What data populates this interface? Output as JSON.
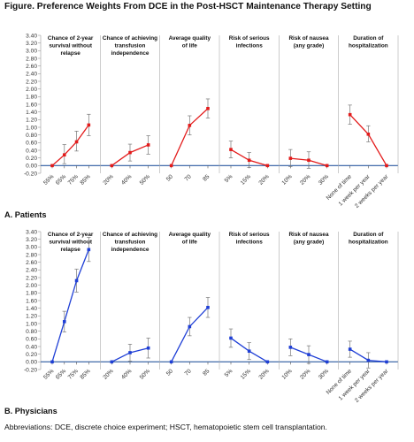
{
  "figure": {
    "title": "Figure. Preference Weights From DCE in the Post-HSCT Maintenance Therapy Setting",
    "footnote": "Abbreviations: DCE, discrete choice experiment; HSCT, hematopoietic stem cell transplantation."
  },
  "chart_data": [
    {
      "type": "line",
      "label": "A. Patients",
      "ylim": [
        -0.2,
        3.4
      ],
      "yticks": [
        "-0.20",
        "0.00",
        "0.20",
        "0.40",
        "0.60",
        "0.80",
        "1.00",
        "1.20",
        "1.40",
        "1.60",
        "1.80",
        "2.00",
        "2.20",
        "2.40",
        "2.60",
        "2.80",
        "3.00",
        "3.20",
        "3.40"
      ],
      "line_color": "#e31b1b",
      "baseline_color": "#2c5aa0",
      "panels": [
        {
          "title": "Chance of 2-year survival without relapse",
          "title_lines": [
            "Chance of 2-year",
            "survival without",
            "relapse"
          ],
          "categories": [
            "55%",
            "65%",
            "75%",
            "85%"
          ],
          "values": [
            0.0,
            0.28,
            0.62,
            1.06
          ],
          "ci_low": [
            0.0,
            0.05,
            0.38,
            0.78
          ],
          "ci_high": [
            0.0,
            0.55,
            0.9,
            1.34
          ]
        },
        {
          "title": "Chance of achieving transfusion independence",
          "title_lines": [
            "Chance of achieving",
            "transfusion",
            "independence"
          ],
          "categories": [
            "20%",
            "40%",
            "50%"
          ],
          "values": [
            0.0,
            0.34,
            0.54
          ],
          "ci_low": [
            0.0,
            0.12,
            0.3
          ],
          "ci_high": [
            0.0,
            0.56,
            0.78
          ]
        },
        {
          "title": "Average quality of life",
          "title_lines": [
            "Average quality",
            "of life"
          ],
          "categories": [
            "50",
            "70",
            "85"
          ],
          "values": [
            0.0,
            1.05,
            1.49
          ],
          "ci_low": [
            0.0,
            0.8,
            1.24
          ],
          "ci_high": [
            0.0,
            1.3,
            1.74
          ]
        },
        {
          "title": "Risk of serious infections",
          "title_lines": [
            "Risk of serious",
            "infections"
          ],
          "categories": [
            "5%",
            "15%",
            "20%"
          ],
          "values": [
            0.42,
            0.14,
            0.0
          ],
          "ci_low": [
            0.2,
            -0.05,
            0.0
          ],
          "ci_high": [
            0.64,
            0.34,
            0.0
          ]
        },
        {
          "title": "Risk of nausea (any grade)",
          "title_lines": [
            "Risk of nausea",
            "(any grade)"
          ],
          "categories": [
            "10%",
            "20%",
            "30%"
          ],
          "values": [
            0.19,
            0.14,
            0.0
          ],
          "ci_low": [
            -0.03,
            -0.07,
            0.0
          ],
          "ci_high": [
            0.42,
            0.36,
            0.0
          ]
        },
        {
          "title": "Duration of hospitalization",
          "title_lines": [
            "Duration of",
            "hospitalization"
          ],
          "categories": [
            "None of time",
            "1 week per year",
            "2 weeks per year"
          ],
          "values": [
            1.33,
            0.82,
            0.0
          ],
          "ci_low": [
            1.08,
            0.62,
            0.0
          ],
          "ci_high": [
            1.58,
            1.04,
            0.0
          ]
        }
      ]
    },
    {
      "type": "line",
      "label": "B. Physicians",
      "ylim": [
        -0.2,
        3.4
      ],
      "yticks": [
        "-0.20",
        "0.00",
        "0.20",
        "0.40",
        "0.60",
        "0.80",
        "1.00",
        "1.20",
        "1.40",
        "1.60",
        "1.80",
        "2.00",
        "2.20",
        "2.40",
        "2.60",
        "2.80",
        "3.00",
        "3.20",
        "3.40"
      ],
      "line_color": "#1f3fd6",
      "baseline_color": "#2c5aa0",
      "panels": [
        {
          "title": "Chance of 2-year survival without relapse",
          "title_lines": [
            "Chance of 2-year",
            "survival without",
            "relapse"
          ],
          "categories": [
            "55%",
            "65%",
            "75%",
            "85%"
          ],
          "values": [
            0.0,
            1.05,
            2.12,
            2.93
          ],
          "ci_low": [
            0.0,
            0.78,
            1.82,
            2.62
          ],
          "ci_high": [
            0.0,
            1.32,
            2.42,
            3.25
          ]
        },
        {
          "title": "Chance of achieving transfusion independence",
          "title_lines": [
            "Chance of achieving",
            "transfusion",
            "independence"
          ],
          "categories": [
            "20%",
            "40%",
            "50%"
          ],
          "values": [
            0.0,
            0.24,
            0.36
          ],
          "ci_low": [
            0.0,
            0.02,
            0.1
          ],
          "ci_high": [
            0.0,
            0.46,
            0.62
          ]
        },
        {
          "title": "Average quality of life",
          "title_lines": [
            "Average quality",
            "of life"
          ],
          "categories": [
            "50",
            "70",
            "85"
          ],
          "values": [
            0.0,
            0.92,
            1.42
          ],
          "ci_low": [
            0.0,
            0.68,
            1.16
          ],
          "ci_high": [
            0.0,
            1.16,
            1.68
          ]
        },
        {
          "title": "Risk of serious infections",
          "title_lines": [
            "Risk of serious",
            "infections"
          ],
          "categories": [
            "5%",
            "15%",
            "20%"
          ],
          "values": [
            0.62,
            0.28,
            0.0
          ],
          "ci_low": [
            0.38,
            0.06,
            0.0
          ],
          "ci_high": [
            0.86,
            0.5,
            0.0
          ]
        },
        {
          "title": "Risk of nausea (any grade)",
          "title_lines": [
            "Risk of nausea",
            "(any grade)"
          ],
          "categories": [
            "10%",
            "20%",
            "30%"
          ],
          "values": [
            0.38,
            0.19,
            0.0
          ],
          "ci_low": [
            0.16,
            -0.04,
            0.0
          ],
          "ci_high": [
            0.6,
            0.42,
            0.0
          ]
        },
        {
          "title": "Duration of hospitalization",
          "title_lines": [
            "Duration of",
            "hospitalization"
          ],
          "categories": [
            "None of time",
            "1 week per year",
            "2 weeks per year"
          ],
          "values": [
            0.33,
            0.04,
            0.0
          ],
          "ci_low": [
            0.12,
            -0.16,
            0.0
          ],
          "ci_high": [
            0.54,
            0.24,
            0.0
          ]
        }
      ]
    }
  ]
}
